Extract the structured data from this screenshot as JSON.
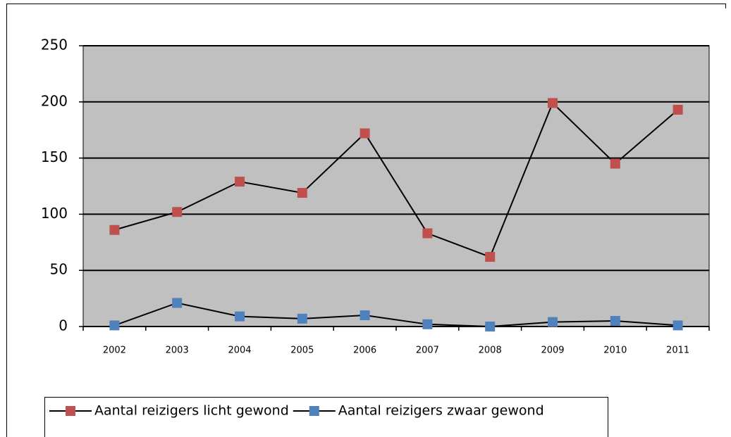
{
  "chart_data": {
    "type": "line",
    "categories": [
      "2002",
      "2003",
      "2004",
      "2005",
      "2006",
      "2007",
      "2008",
      "2009",
      "2010",
      "2011"
    ],
    "series": [
      {
        "name": "Aantal reizigers licht gewond",
        "color": "#c0504d",
        "values": [
          86,
          102,
          129,
          119,
          172,
          83,
          62,
          199,
          145,
          193
        ]
      },
      {
        "name": "Aantal reizigers zwaar gewond",
        "color": "#4f81bd",
        "values": [
          1,
          21,
          9,
          7,
          10,
          2,
          0,
          4,
          5,
          1
        ]
      }
    ],
    "line_color": "#000000",
    "plot_background": "#c0c0c0",
    "ylim": [
      0,
      250
    ],
    "yticks": [
      0,
      50,
      100,
      150,
      200,
      250
    ],
    "grid": true,
    "legend": "bottom"
  }
}
